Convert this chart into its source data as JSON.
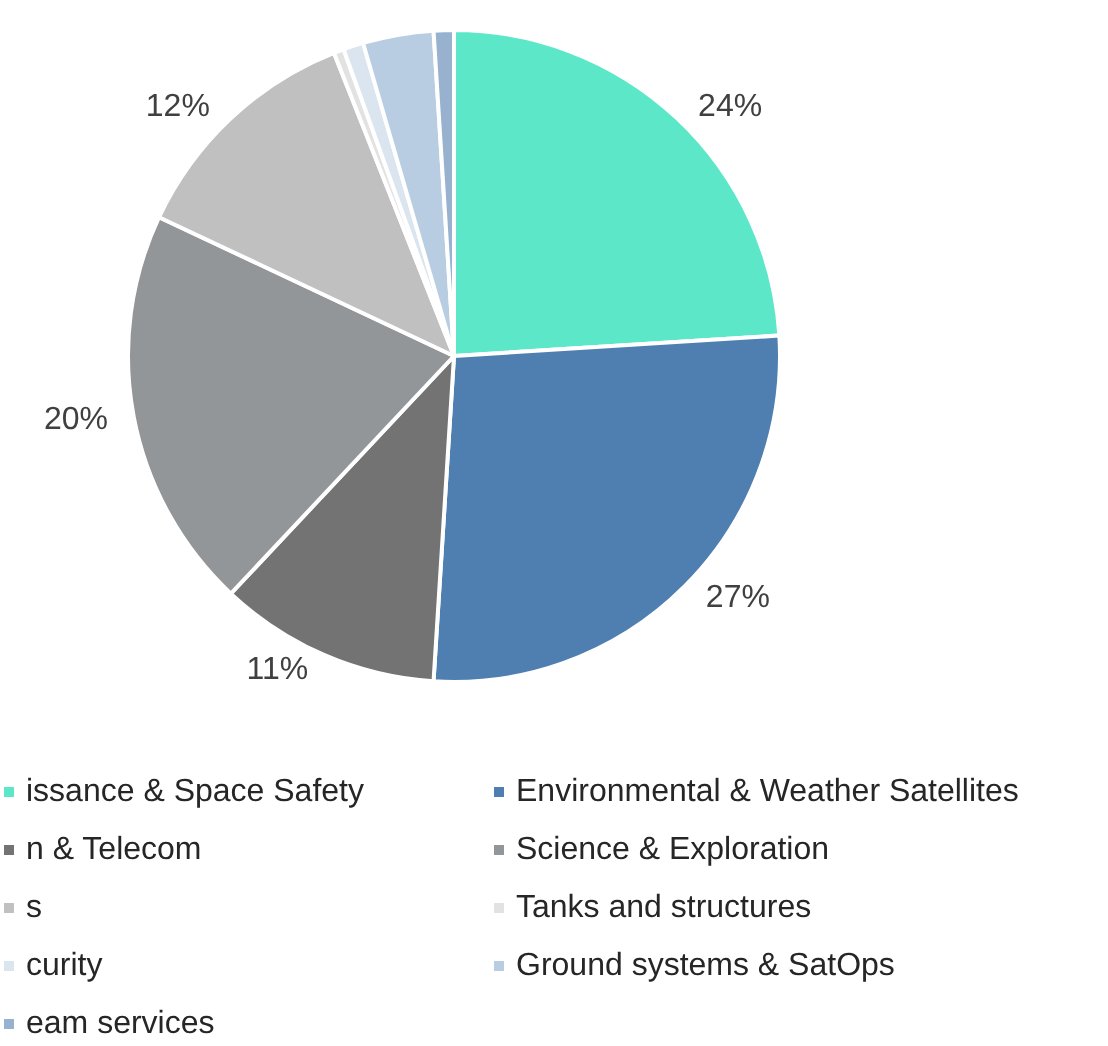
{
  "chart_data": {
    "type": "pie",
    "categories": [
      "issance & Space Safety",
      "Environmental & Weather Satellites",
      "n & Telecom",
      "Science & Exploration",
      "s",
      "Tanks and structures",
      "curity",
      "Ground systems & SatOps",
      "eam services"
    ],
    "values": [
      24,
      27,
      11,
      20,
      12,
      0.5,
      1,
      3.5,
      1
    ],
    "value_labels": [
      "24%",
      "27%",
      "11%",
      "20%",
      "12%",
      null,
      null,
      null,
      null
    ],
    "colors": [
      "#5ce8c8",
      "#4e7fb0",
      "#737373",
      "#929699",
      "#c0c0c0",
      "#e2e2e2",
      "#dbe5ef",
      "#b9cde2",
      "#98b1cf"
    ],
    "legend": "bottom"
  }
}
